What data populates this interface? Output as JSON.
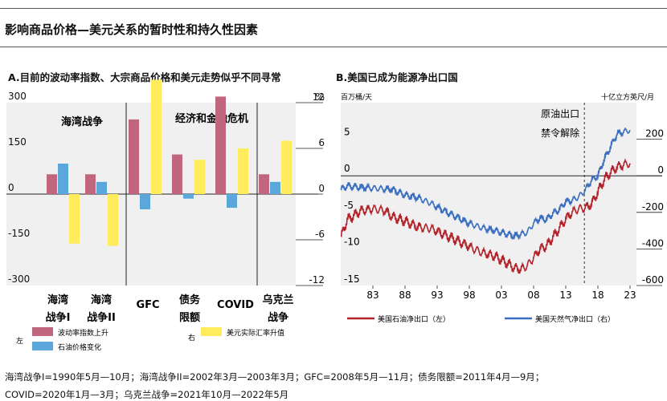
{
  "title": "影响商品价格—美元关系的暂时性和持久性因素",
  "footnotes": [
    "海湾战争I=1990年5月—10月；海湾战争II=2002年3月—2003年3月；GFC=2008年5月—11月；债务限额=2011年4月—9月；",
    "COVID=2020年1月—3月；乌克兰战争=2021年10月—2022年5月"
  ],
  "colors": {
    "pink": "#c0667f",
    "blue": "#5aa7db",
    "yellow": "#ffec5c",
    "oil": "#b3232a",
    "gas": "#3a6fbf",
    "bg": "#f0f0f1"
  },
  "chart_data": [
    {
      "type": "bar",
      "title": "A.目前的波动率指数、大宗商品价格和美元走势似乎不同寻常",
      "left_ticks": [
        "300",
        "150",
        "0",
        "-150",
        "-300"
      ],
      "right_unit": "%",
      "right_ticks": [
        "12",
        "6",
        "0",
        "-6",
        "-12"
      ],
      "ylim_left": [
        -300,
        300
      ],
      "ylim_right": [
        -12,
        12
      ],
      "categories": [
        "海湾\n战争I",
        "海湾\n战争II",
        "GFC",
        "债务\n限额",
        "COVID",
        "乌克兰\n战争"
      ],
      "region_labels": [
        "海湾战争",
        "经济和金融危机"
      ],
      "series": [
        {
          "name": "波动率指数上升",
          "axis": "left",
          "color": "#c0667f",
          "values": [
            65,
            65,
            245,
            130,
            320,
            65
          ]
        },
        {
          "name": "石油价格变化",
          "axis": "left",
          "color": "#5aa7db",
          "values": [
            100,
            40,
            -50,
            -15,
            -45,
            40
          ]
        },
        {
          "name": "美元实际汇率升值",
          "axis": "right",
          "color": "#ffec5c",
          "values": [
            -6.5,
            -6.8,
            15,
            4.5,
            6,
            7
          ]
        }
      ],
      "legend_side_left": "左",
      "legend_side_right": "右"
    },
    {
      "type": "line",
      "title": "B.美国已成为能源净出口国",
      "left_unit": "百万桶/天",
      "right_unit": "十亿立方英尺/月",
      "left_ticks": [
        "5",
        "0",
        "-5",
        "-10",
        "-15"
      ],
      "right_ticks": [
        "200",
        "0",
        "-200",
        "-400",
        "-600"
      ],
      "ylim_left": [
        -15,
        10
      ],
      "ylim_right": [
        -600,
        400
      ],
      "x_ticks": [
        "83",
        "88",
        "93",
        "98",
        "03",
        "08",
        "13",
        "18",
        "23"
      ],
      "xlim": [
        1978,
        2024
      ],
      "annotation": [
        "原油出口",
        "禁令解除"
      ],
      "annotation_x": 2015.9,
      "series": [
        {
          "name": "美国石油净出口（左）",
          "axis": "left",
          "color": "#b3232a",
          "x": [
            1978,
            1979,
            1980,
            1981,
            1983,
            1985,
            1986,
            1988,
            1990,
            1992,
            1994,
            1996,
            1998,
            2000,
            2002,
            2004,
            2005,
            2006,
            2007,
            2008,
            2009,
            2010,
            2011,
            2012,
            2013,
            2014,
            2015,
            2016,
            2017,
            2018,
            2019,
            2020,
            2021,
            2022,
            2023
          ],
          "y": [
            -8.5,
            -6.0,
            -5.5,
            -4.8,
            -4.5,
            -4.8,
            -5.6,
            -6.2,
            -7.0,
            -7.2,
            -8.0,
            -8.8,
            -9.7,
            -10.5,
            -11.0,
            -12.0,
            -12.6,
            -12.8,
            -12.3,
            -11.2,
            -10.0,
            -9.6,
            -8.4,
            -7.2,
            -5.9,
            -5.0,
            -4.5,
            -4.4,
            -3.9,
            -2.2,
            -0.5,
            0.5,
            1.2,
            1.5,
            1.7
          ]
        },
        {
          "name": "美国天然气净出口（右）",
          "axis": "right",
          "color": "#3a6fbf",
          "x": [
            1978,
            1979,
            1980,
            1982,
            1984,
            1986,
            1988,
            1990,
            1992,
            1994,
            1996,
            1998,
            2000,
            2002,
            2004,
            2005,
            2006,
            2007,
            2008,
            2009,
            2010,
            2011,
            2012,
            2013,
            2014,
            2015,
            2016,
            2017,
            2018,
            2019,
            2020,
            2021,
            2022,
            2023
          ],
          "y": [
            -75,
            -55,
            -60,
            -65,
            -70,
            -75,
            -105,
            -120,
            -150,
            -190,
            -225,
            -260,
            -285,
            -300,
            -320,
            -330,
            -320,
            -310,
            -260,
            -230,
            -240,
            -205,
            -185,
            -140,
            -135,
            -115,
            -80,
            -25,
            0,
            90,
            160,
            230,
            240,
            250
          ]
        }
      ]
    }
  ]
}
